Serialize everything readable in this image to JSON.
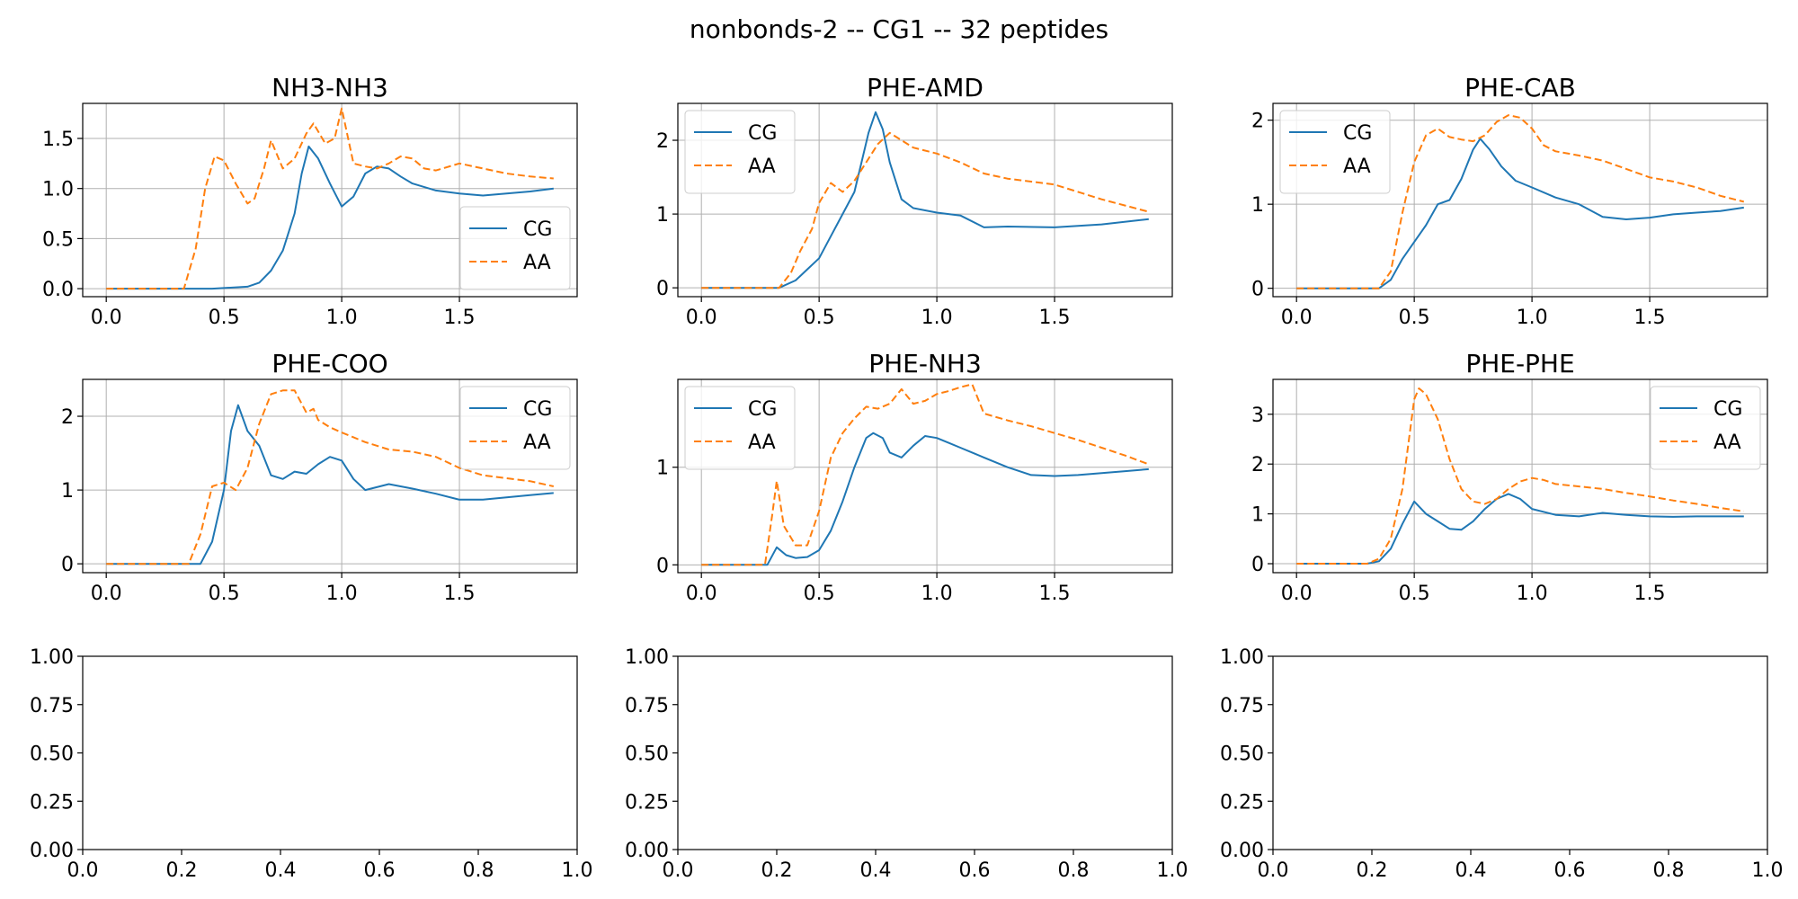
{
  "figure": {
    "title": "nonbonds-2 -- CG1 -- 32 peptides"
  },
  "colors": {
    "cg": "#1f77b4",
    "aa": "#ff7f0e"
  },
  "chart_data": [
    {
      "type": "line",
      "title": "NH3-NH3",
      "xlim": [
        -0.1,
        2.0
      ],
      "ylim": [
        -0.08,
        1.85
      ],
      "xticks": [
        0.0,
        0.5,
        1.0,
        1.5
      ],
      "xtick_labels": [
        "0.0",
        "0.5",
        "1.0",
        "1.5"
      ],
      "yticks": [
        0.0,
        0.5,
        1.0,
        1.5
      ],
      "ytick_labels": [
        "0.0",
        "0.5",
        "1.0",
        "1.5"
      ],
      "grid": true,
      "legend": "lower-right",
      "series": [
        {
          "name": "CG",
          "style": "solid",
          "x": [
            0,
            0.45,
            0.6,
            0.65,
            0.7,
            0.75,
            0.8,
            0.83,
            0.86,
            0.9,
            0.95,
            1.0,
            1.05,
            1.1,
            1.15,
            1.2,
            1.25,
            1.3,
            1.4,
            1.5,
            1.6,
            1.7,
            1.8,
            1.9
          ],
          "y": [
            0,
            0,
            0.02,
            0.06,
            0.18,
            0.38,
            0.75,
            1.15,
            1.42,
            1.3,
            1.05,
            0.82,
            0.92,
            1.15,
            1.22,
            1.2,
            1.12,
            1.05,
            0.98,
            0.95,
            0.93,
            0.95,
            0.97,
            1.0
          ]
        },
        {
          "name": "AA",
          "style": "dashed",
          "x": [
            0,
            0.33,
            0.38,
            0.42,
            0.46,
            0.5,
            0.55,
            0.6,
            0.63,
            0.67,
            0.7,
            0.75,
            0.8,
            0.85,
            0.88,
            0.93,
            0.97,
            1.0,
            1.05,
            1.1,
            1.15,
            1.2,
            1.25,
            1.3,
            1.35,
            1.4,
            1.5,
            1.6,
            1.7,
            1.8,
            1.9
          ],
          "y": [
            0,
            0,
            0.4,
            1.0,
            1.32,
            1.28,
            1.05,
            0.85,
            0.9,
            1.2,
            1.48,
            1.2,
            1.3,
            1.55,
            1.65,
            1.45,
            1.5,
            1.8,
            1.25,
            1.22,
            1.2,
            1.25,
            1.32,
            1.3,
            1.2,
            1.18,
            1.25,
            1.2,
            1.15,
            1.12,
            1.1
          ]
        }
      ]
    },
    {
      "type": "line",
      "title": "PHE-AMD",
      "xlim": [
        -0.1,
        2.0
      ],
      "ylim": [
        -0.12,
        2.5
      ],
      "xticks": [
        0.0,
        0.5,
        1.0,
        1.5
      ],
      "xtick_labels": [
        "0.0",
        "0.5",
        "1.0",
        "1.5"
      ],
      "yticks": [
        0,
        1,
        2
      ],
      "ytick_labels": [
        "0",
        "1",
        "2"
      ],
      "grid": true,
      "legend": "upper-left",
      "series": [
        {
          "name": "CG",
          "style": "solid",
          "x": [
            0,
            0.33,
            0.4,
            0.45,
            0.5,
            0.55,
            0.6,
            0.65,
            0.68,
            0.71,
            0.74,
            0.77,
            0.8,
            0.85,
            0.9,
            1.0,
            1.1,
            1.2,
            1.3,
            1.5,
            1.7,
            1.9
          ],
          "y": [
            0,
            0,
            0.1,
            0.25,
            0.4,
            0.7,
            1.0,
            1.3,
            1.7,
            2.1,
            2.38,
            2.15,
            1.7,
            1.2,
            1.08,
            1.02,
            0.98,
            0.82,
            0.83,
            0.82,
            0.86,
            0.93
          ]
        },
        {
          "name": "AA",
          "style": "dashed",
          "x": [
            0,
            0.33,
            0.38,
            0.42,
            0.47,
            0.5,
            0.55,
            0.6,
            0.65,
            0.7,
            0.75,
            0.8,
            0.85,
            0.9,
            1.0,
            1.1,
            1.2,
            1.3,
            1.5,
            1.7,
            1.9
          ],
          "y": [
            0,
            0,
            0.2,
            0.5,
            0.8,
            1.15,
            1.42,
            1.3,
            1.45,
            1.7,
            1.95,
            2.1,
            2.0,
            1.9,
            1.82,
            1.7,
            1.55,
            1.48,
            1.4,
            1.2,
            1.03
          ]
        }
      ]
    },
    {
      "type": "line",
      "title": "PHE-CAB",
      "xlim": [
        -0.1,
        2.0
      ],
      "ylim": [
        -0.1,
        2.2
      ],
      "xticks": [
        0.0,
        0.5,
        1.0,
        1.5
      ],
      "xtick_labels": [
        "0.0",
        "0.5",
        "1.0",
        "1.5"
      ],
      "yticks": [
        0,
        1,
        2
      ],
      "ytick_labels": [
        "0",
        "1",
        "2"
      ],
      "grid": true,
      "legend": "upper-left",
      "series": [
        {
          "name": "CG",
          "style": "solid",
          "x": [
            0,
            0.35,
            0.4,
            0.45,
            0.5,
            0.55,
            0.6,
            0.65,
            0.7,
            0.75,
            0.78,
            0.82,
            0.87,
            0.93,
            1.0,
            1.1,
            1.2,
            1.3,
            1.4,
            1.5,
            1.6,
            1.7,
            1.8,
            1.9
          ],
          "y": [
            0,
            0,
            0.1,
            0.35,
            0.55,
            0.75,
            1.0,
            1.05,
            1.3,
            1.65,
            1.78,
            1.65,
            1.45,
            1.28,
            1.2,
            1.08,
            1.0,
            0.85,
            0.82,
            0.84,
            0.88,
            0.9,
            0.92,
            0.96
          ]
        },
        {
          "name": "AA",
          "style": "dashed",
          "x": [
            0,
            0.35,
            0.4,
            0.45,
            0.5,
            0.55,
            0.6,
            0.65,
            0.7,
            0.75,
            0.8,
            0.85,
            0.9,
            0.95,
            1.0,
            1.05,
            1.1,
            1.2,
            1.3,
            1.4,
            1.5,
            1.6,
            1.7,
            1.8,
            1.9
          ],
          "y": [
            0,
            0,
            0.2,
            0.9,
            1.5,
            1.82,
            1.9,
            1.8,
            1.77,
            1.75,
            1.82,
            1.98,
            2.06,
            2.03,
            1.9,
            1.7,
            1.63,
            1.58,
            1.52,
            1.42,
            1.32,
            1.27,
            1.2,
            1.1,
            1.03
          ]
        }
      ]
    },
    {
      "type": "line",
      "title": "PHE-COO",
      "xlim": [
        -0.1,
        2.0
      ],
      "ylim": [
        -0.12,
        2.5
      ],
      "xticks": [
        0.0,
        0.5,
        1.0,
        1.5
      ],
      "xtick_labels": [
        "0.0",
        "0.5",
        "1.0",
        "1.5"
      ],
      "yticks": [
        0,
        1,
        2
      ],
      "ytick_labels": [
        "0",
        "1",
        "2"
      ],
      "grid": true,
      "legend": "upper-right",
      "series": [
        {
          "name": "CG",
          "style": "solid",
          "x": [
            0,
            0.4,
            0.45,
            0.5,
            0.53,
            0.56,
            0.6,
            0.65,
            0.7,
            0.75,
            0.8,
            0.85,
            0.9,
            0.95,
            1.0,
            1.05,
            1.1,
            1.2,
            1.3,
            1.4,
            1.5,
            1.6,
            1.7,
            1.8,
            1.9
          ],
          "y": [
            0,
            0,
            0.3,
            1.0,
            1.8,
            2.15,
            1.8,
            1.6,
            1.2,
            1.15,
            1.25,
            1.22,
            1.35,
            1.45,
            1.4,
            1.15,
            1.0,
            1.08,
            1.02,
            0.95,
            0.87,
            0.87,
            0.9,
            0.93,
            0.96
          ]
        },
        {
          "name": "AA",
          "style": "dashed",
          "x": [
            0,
            0.35,
            0.4,
            0.45,
            0.5,
            0.55,
            0.6,
            0.65,
            0.7,
            0.75,
            0.8,
            0.85,
            0.88,
            0.9,
            0.95,
            1.0,
            1.1,
            1.2,
            1.3,
            1.4,
            1.5,
            1.6,
            1.7,
            1.8,
            1.9
          ],
          "y": [
            0,
            0,
            0.4,
            1.05,
            1.1,
            1.0,
            1.3,
            1.9,
            2.3,
            2.35,
            2.35,
            2.05,
            2.1,
            1.95,
            1.85,
            1.78,
            1.65,
            1.55,
            1.52,
            1.45,
            1.3,
            1.2,
            1.16,
            1.12,
            1.05
          ]
        }
      ]
    },
    {
      "type": "line",
      "title": "PHE-NH3",
      "xlim": [
        -0.1,
        2.0
      ],
      "ylim": [
        -0.08,
        1.9
      ],
      "xticks": [
        0.0,
        0.5,
        1.0,
        1.5
      ],
      "xtick_labels": [
        "0.0",
        "0.5",
        "1.0",
        "1.5"
      ],
      "yticks": [
        0,
        1
      ],
      "ytick_labels": [
        "0",
        "1"
      ],
      "grid": true,
      "legend": "upper-left",
      "series": [
        {
          "name": "CG",
          "style": "solid",
          "x": [
            0,
            0.28,
            0.32,
            0.36,
            0.4,
            0.45,
            0.5,
            0.55,
            0.6,
            0.65,
            0.7,
            0.73,
            0.77,
            0.8,
            0.85,
            0.9,
            0.95,
            1.0,
            1.05,
            1.1,
            1.15,
            1.2,
            1.3,
            1.4,
            1.5,
            1.6,
            1.7,
            1.8,
            1.9
          ],
          "y": [
            0,
            0,
            0.18,
            0.1,
            0.07,
            0.08,
            0.15,
            0.35,
            0.65,
            1.0,
            1.3,
            1.35,
            1.3,
            1.15,
            1.1,
            1.22,
            1.32,
            1.3,
            1.25,
            1.2,
            1.15,
            1.1,
            1.0,
            0.92,
            0.91,
            0.92,
            0.94,
            0.96,
            0.98
          ]
        },
        {
          "name": "AA",
          "style": "dashed",
          "x": [
            0,
            0.27,
            0.3,
            0.32,
            0.35,
            0.4,
            0.45,
            0.5,
            0.55,
            0.6,
            0.65,
            0.7,
            0.75,
            0.8,
            0.85,
            0.9,
            0.95,
            1.0,
            1.05,
            1.1,
            1.15,
            1.2,
            1.3,
            1.4,
            1.5,
            1.6,
            1.7,
            1.8,
            1.9
          ],
          "y": [
            0,
            0,
            0.5,
            0.86,
            0.4,
            0.2,
            0.2,
            0.55,
            1.1,
            1.35,
            1.5,
            1.62,
            1.6,
            1.65,
            1.8,
            1.65,
            1.68,
            1.75,
            1.78,
            1.82,
            1.85,
            1.55,
            1.48,
            1.42,
            1.35,
            1.28,
            1.2,
            1.12,
            1.03
          ]
        }
      ]
    },
    {
      "type": "line",
      "title": "PHE-PHE",
      "xlim": [
        -0.1,
        2.0
      ],
      "ylim": [
        -0.18,
        3.7
      ],
      "xticks": [
        0.0,
        0.5,
        1.0,
        1.5
      ],
      "xtick_labels": [
        "0.0",
        "0.5",
        "1.0",
        "1.5"
      ],
      "yticks": [
        0,
        1,
        2,
        3
      ],
      "ytick_labels": [
        "0",
        "1",
        "2",
        "3"
      ],
      "grid": true,
      "legend": "upper-right",
      "series": [
        {
          "name": "CG",
          "style": "solid",
          "x": [
            0,
            0.3,
            0.35,
            0.4,
            0.45,
            0.5,
            0.55,
            0.6,
            0.65,
            0.7,
            0.75,
            0.8,
            0.85,
            0.9,
            0.95,
            1.0,
            1.1,
            1.2,
            1.3,
            1.4,
            1.5,
            1.6,
            1.7,
            1.8,
            1.9
          ],
          "y": [
            0,
            0,
            0.05,
            0.3,
            0.8,
            1.25,
            1.0,
            0.85,
            0.7,
            0.68,
            0.85,
            1.1,
            1.3,
            1.4,
            1.3,
            1.1,
            0.98,
            0.95,
            1.02,
            0.98,
            0.95,
            0.94,
            0.95,
            0.95,
            0.95
          ]
        },
        {
          "name": "AA",
          "style": "dashed",
          "x": [
            0,
            0.3,
            0.35,
            0.4,
            0.45,
            0.5,
            0.52,
            0.55,
            0.6,
            0.65,
            0.7,
            0.75,
            0.8,
            0.85,
            0.9,
            0.95,
            1.0,
            1.05,
            1.1,
            1.2,
            1.3,
            1.4,
            1.5,
            1.6,
            1.7,
            1.8,
            1.9
          ],
          "y": [
            0,
            0,
            0.1,
            0.5,
            1.5,
            3.3,
            3.52,
            3.4,
            2.9,
            2.1,
            1.5,
            1.25,
            1.2,
            1.3,
            1.5,
            1.65,
            1.72,
            1.68,
            1.6,
            1.55,
            1.5,
            1.42,
            1.35,
            1.27,
            1.2,
            1.12,
            1.05
          ]
        }
      ]
    },
    {
      "type": "line",
      "title": "",
      "xlim": [
        0,
        1
      ],
      "ylim": [
        0,
        1
      ],
      "grid": false,
      "xticks": [
        0,
        0.2,
        0.4,
        0.6,
        0.8,
        1.0
      ],
      "xtick_labels": [
        "0.0",
        "0.2",
        "0.4",
        "0.6",
        "0.8",
        "1.0"
      ],
      "yticks": [
        0,
        0.25,
        0.5,
        0.75,
        1.0
      ],
      "ytick_labels": [
        "0.00",
        "0.25",
        "0.50",
        "0.75",
        "1.00"
      ],
      "series": []
    },
    {
      "type": "line",
      "title": "",
      "xlim": [
        0,
        1
      ],
      "ylim": [
        0,
        1
      ],
      "grid": false,
      "xticks": [
        0,
        0.2,
        0.4,
        0.6,
        0.8,
        1.0
      ],
      "xtick_labels": [
        "0.0",
        "0.2",
        "0.4",
        "0.6",
        "0.8",
        "1.0"
      ],
      "yticks": [
        0,
        0.25,
        0.5,
        0.75,
        1.0
      ],
      "ytick_labels": [
        "0.00",
        "0.25",
        "0.50",
        "0.75",
        "1.00"
      ],
      "series": []
    },
    {
      "type": "line",
      "title": "",
      "xlim": [
        0,
        1
      ],
      "ylim": [
        0,
        1
      ],
      "grid": false,
      "xticks": [
        0,
        0.2,
        0.4,
        0.6,
        0.8,
        1.0
      ],
      "xtick_labels": [
        "0.0",
        "0.2",
        "0.4",
        "0.6",
        "0.8",
        "1.0"
      ],
      "yticks": [
        0,
        0.25,
        0.5,
        0.75,
        1.0
      ],
      "ytick_labels": [
        "0.00",
        "0.25",
        "0.50",
        "0.75",
        "1.00"
      ],
      "series": []
    }
  ]
}
